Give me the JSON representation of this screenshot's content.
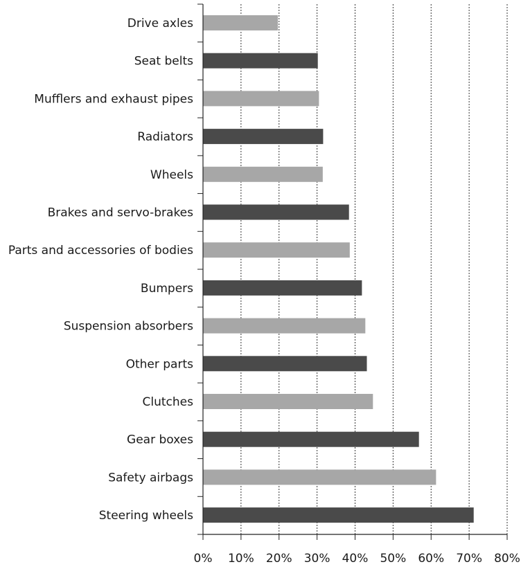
{
  "chart_data": {
    "type": "bar",
    "orientation": "horizontal",
    "categories": [
      "Drive axles",
      "Seat belts",
      "Mufflers and exhaust pipes",
      "Radiators",
      "Wheels",
      "Brakes and servo-brakes",
      "Parts and accessories of bodies",
      "Bumpers",
      "Suspension absorbers",
      "Other parts",
      "Clutches",
      "Gear boxes",
      "Safety airbags",
      "Steering wheels"
    ],
    "values": [
      19.7,
      30.2,
      30.5,
      31.6,
      31.5,
      38.4,
      38.6,
      41.8,
      42.7,
      43.1,
      44.7,
      56.8,
      61.3,
      71.2
    ],
    "value_unit": "%",
    "xlim": [
      0,
      80
    ],
    "xticks": [
      0,
      10,
      20,
      30,
      40,
      50,
      60,
      70,
      80
    ],
    "xtick_labels": [
      "0%",
      "10%",
      "20%",
      "30%",
      "40%",
      "50%",
      "60%",
      "70%",
      "80%"
    ],
    "grid": "vertical dashed",
    "bar_colors": [
      "#a7a7a7",
      "#4a4a4a"
    ],
    "title": "",
    "xlabel": "",
    "ylabel": ""
  }
}
